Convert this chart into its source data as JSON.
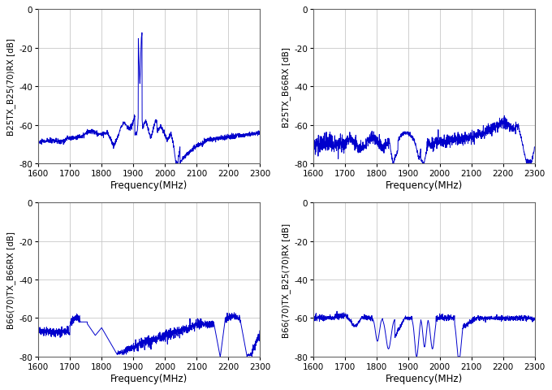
{
  "line_color": "#0000CC",
  "line_width": 0.7,
  "bg_color": "#ffffff",
  "grid_color": "#c8c8c8",
  "xlim": [
    1600,
    2300
  ],
  "ylim": [
    -80,
    0
  ],
  "xticks": [
    1600,
    1700,
    1800,
    1900,
    2000,
    2100,
    2200,
    2300
  ],
  "yticks": [
    -80,
    -60,
    -40,
    -20,
    0
  ],
  "xlabel": "Frequency(MHz)",
  "subplots": [
    {
      "ylabel": "B25TX_B25(70)RX [dB]"
    },
    {
      "ylabel": "B25TX_B66RX [dB]"
    },
    {
      "ylabel": "B66(70)TX_B66RX [dB]"
    },
    {
      "ylabel": "B66(70)TX_B25(70)RX [dB]"
    }
  ]
}
